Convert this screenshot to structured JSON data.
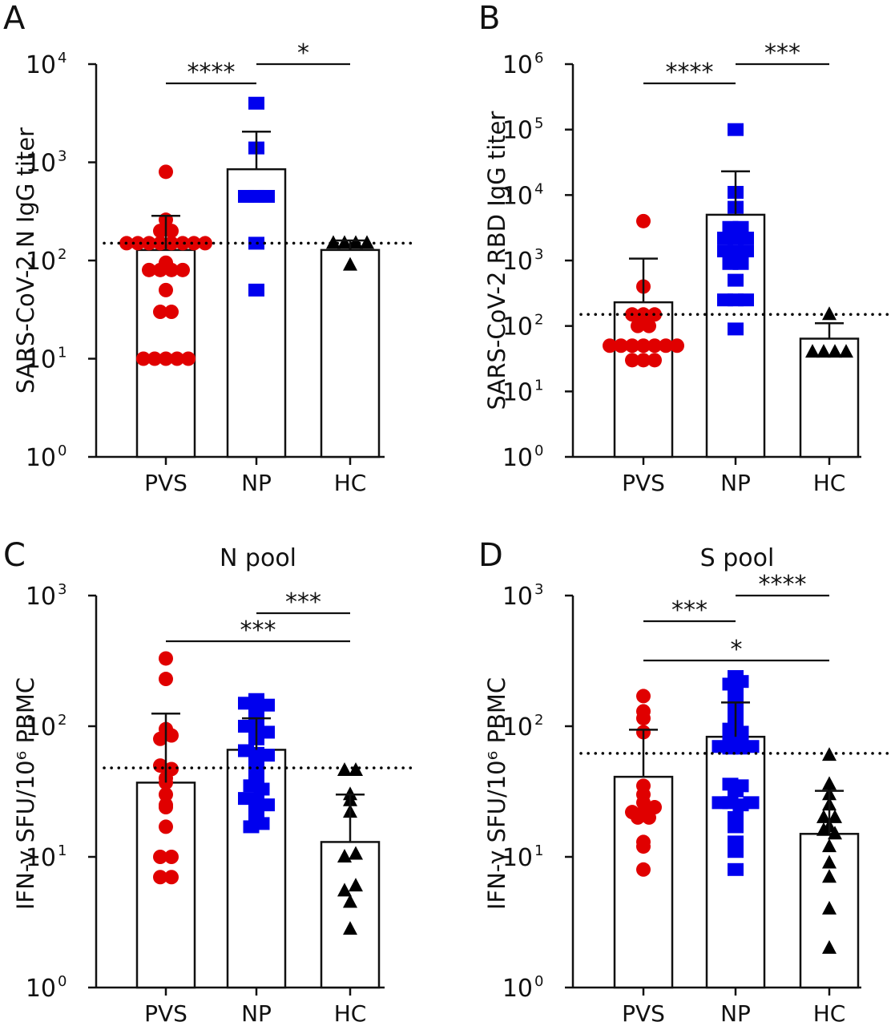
{
  "figure": {
    "colors": {
      "PVS": "#e00000",
      "NP": "#0000ee",
      "HC": "#000000",
      "axis": "#111111"
    },
    "markers": {
      "PVS": "circle",
      "NP": "square",
      "HC": "triangle"
    }
  },
  "chart_data": [
    {
      "panel": "A",
      "type": "bar",
      "title": "",
      "ylabel": "SARS-CoV-2 N IgG titer",
      "xlabel": "",
      "yscale": "log",
      "ylim": [
        1,
        10000
      ],
      "yticks": [
        "10^0",
        "10^1",
        "10^2",
        "10^3",
        "10^4"
      ],
      "tick_labels": [
        {
          "base": "10",
          "exp": "0"
        },
        {
          "base": "10",
          "exp": "1"
        },
        {
          "base": "10",
          "exp": "2"
        },
        {
          "base": "10",
          "exp": "3"
        },
        {
          "base": "10",
          "exp": "4"
        }
      ],
      "categories": [
        "PVS",
        "NP",
        "HC"
      ],
      "bar_means": [
        128,
        850,
        128
      ],
      "error_upper": [
        285,
        2050,
        160
      ],
      "threshold": 150,
      "points": {
        "PVS": [
          800,
          260,
          200,
          200,
          150,
          150,
          150,
          150,
          150,
          150,
          150,
          150,
          95,
          80,
          80,
          80,
          80,
          50,
          30,
          30,
          10,
          10,
          10,
          10,
          10
        ],
        "NP": [
          4000,
          1400,
          450,
          450,
          450,
          150,
          50
        ],
        "HC": [
          150,
          150,
          150,
          150,
          90
        ]
      },
      "significance": [
        {
          "groups": [
            "PVS",
            "NP"
          ],
          "label": "****"
        },
        {
          "groups": [
            "NP",
            "HC"
          ],
          "label": "*"
        }
      ]
    },
    {
      "panel": "B",
      "type": "bar",
      "title": "",
      "ylabel": "SARS-CoV-2 RBD IgG titer",
      "xlabel": "",
      "yscale": "log",
      "ylim": [
        1,
        1000000
      ],
      "yticks": [
        "10^0",
        "10^1",
        "10^2",
        "10^3",
        "10^4",
        "10^5",
        "10^6"
      ],
      "tick_labels": [
        {
          "base": "10",
          "exp": "0"
        },
        {
          "base": "10",
          "exp": "1"
        },
        {
          "base": "10",
          "exp": "2"
        },
        {
          "base": "10",
          "exp": "3"
        },
        {
          "base": "10",
          "exp": "4"
        },
        {
          "base": "10",
          "exp": "5"
        },
        {
          "base": "10",
          "exp": "6"
        }
      ],
      "categories": [
        "PVS",
        "NP",
        "HC"
      ],
      "bar_means": [
        230,
        5000,
        64
      ],
      "error_upper": [
        1070,
        23000,
        110
      ],
      "threshold": 150,
      "points": {
        "PVS": [
          4000,
          400,
          150,
          150,
          150,
          100,
          100,
          50,
          50,
          50,
          50,
          50,
          50,
          50,
          30,
          30,
          30
        ],
        "NP": [
          100000,
          11000,
          6500,
          3200,
          3200,
          2200,
          2200,
          2200,
          1400,
          1400,
          1400,
          900,
          900,
          500,
          250,
          250,
          250,
          90
        ],
        "HC": [
          150,
          40,
          40,
          40,
          40
        ]
      },
      "significance": [
        {
          "groups": [
            "PVS",
            "NP"
          ],
          "label": "****"
        },
        {
          "groups": [
            "NP",
            "HC"
          ],
          "label": "***"
        }
      ]
    },
    {
      "panel": "C",
      "type": "bar",
      "title": "N pool",
      "ylabel": "IFN-γ SFU/10⁶ PBMC",
      "xlabel": "",
      "yscale": "log",
      "ylim": [
        1,
        1000
      ],
      "yticks": [
        "10^0",
        "10^1",
        "10^2",
        "10^3"
      ],
      "tick_labels": [
        {
          "base": "10",
          "exp": "0"
        },
        {
          "base": "10",
          "exp": "1"
        },
        {
          "base": "10",
          "exp": "2"
        },
        {
          "base": "10",
          "exp": "3"
        }
      ],
      "categories": [
        "PVS",
        "NP",
        "HC"
      ],
      "bar_means": [
        37,
        66,
        13
      ],
      "error_upper": [
        125,
        115,
        30
      ],
      "threshold": 48,
      "points": {
        "PVS": [
          330,
          230,
          95,
          80,
          85,
          50,
          47,
          40,
          37,
          30,
          25,
          24,
          17,
          10,
          10,
          7,
          7
        ],
        "NP": [
          150,
          140,
          120,
          160,
          145,
          100,
          98,
          90,
          80,
          65,
          62,
          60,
          55,
          45,
          40,
          35,
          33,
          28,
          27,
          25,
          22,
          20,
          17,
          18
        ],
        "HC": [
          46,
          46,
          30,
          27,
          22,
          10,
          10.5,
          5.5,
          6,
          4.5,
          2.8
        ]
      },
      "significance": [
        {
          "groups": [
            "NP",
            "HC"
          ],
          "label": "***"
        },
        {
          "groups": [
            "PVS",
            "HC"
          ],
          "label": "***"
        }
      ]
    },
    {
      "panel": "D",
      "type": "bar",
      "title": "S pool",
      "ylabel": "IFN-γ SFU/10⁶ PBMC",
      "xlabel": "",
      "yscale": "log",
      "ylim": [
        1,
        1000
      ],
      "yticks": [
        "10^0",
        "10^1",
        "10^2",
        "10^3"
      ],
      "tick_labels": [
        {
          "base": "10",
          "exp": "0"
        },
        {
          "base": "10",
          "exp": "1"
        },
        {
          "base": "10",
          "exp": "2"
        },
        {
          "base": "10",
          "exp": "3"
        }
      ],
      "categories": [
        "PVS",
        "NP",
        "HC"
      ],
      "bar_means": [
        41,
        83,
        15
      ],
      "error_upper": [
        94,
        152,
        32
      ],
      "threshold": 62,
      "points": {
        "PVS": [
          170,
          130,
          115,
          90,
          35,
          30,
          26,
          22,
          22,
          24,
          20,
          20,
          13,
          12,
          8
        ],
        "NP": [
          240,
          210,
          220,
          185,
          150,
          125,
          110,
          95,
          90,
          85,
          80,
          70,
          68,
          68,
          70,
          36,
          35,
          32,
          26,
          26,
          25,
          26,
          20,
          17,
          13,
          11,
          8
        ],
        "HC": [
          60,
          36,
          30,
          25,
          20,
          20,
          17,
          16,
          15,
          12,
          9,
          7,
          4,
          2
        ]
      },
      "significance": [
        {
          "groups": [
            "PVS",
            "NP"
          ],
          "label": "***"
        },
        {
          "groups": [
            "NP",
            "HC"
          ],
          "label": "****"
        },
        {
          "groups": [
            "PVS",
            "HC"
          ],
          "label": "*"
        }
      ]
    }
  ]
}
